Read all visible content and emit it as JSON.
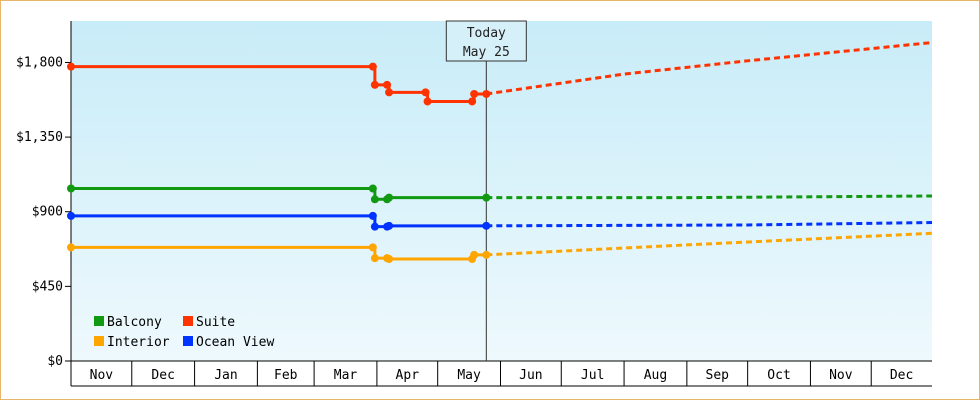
{
  "chart_data": {
    "type": "line",
    "title": "",
    "xlabel": "",
    "ylabel": "",
    "ylim": [
      0,
      2050
    ],
    "y_ticks": [
      0,
      450,
      900,
      1350,
      1800
    ],
    "y_tick_labels": [
      "$0",
      "$450",
      "$900",
      "$1,350",
      "$1,800"
    ],
    "x_start": "2024-11-01",
    "x_end": "2025-12-31",
    "month_labels": [
      "Nov",
      "Dec",
      "Jan",
      "Feb",
      "Mar",
      "Apr",
      "May",
      "Jun",
      "Jul",
      "Aug",
      "Sep",
      "Oct",
      "Nov",
      "Dec"
    ],
    "month_starts": [
      "2024-11-01",
      "2024-12-01",
      "2025-01-01",
      "2025-02-01",
      "2025-03-01",
      "2025-04-01",
      "2025-05-01",
      "2025-06-01",
      "2025-07-01",
      "2025-08-01",
      "2025-09-01",
      "2025-10-01",
      "2025-11-01",
      "2025-12-01"
    ],
    "grid": false,
    "legend_position": "bottom-left",
    "background_gradient": [
      "#c8ecf8",
      "#eef9fd"
    ],
    "today": {
      "line1": "Today",
      "line2": "May 25",
      "date": "2025-05-25"
    },
    "series": [
      {
        "name": "Balcony",
        "color": "#119911",
        "step_points": [
          [
            "2024-11-01",
            1040
          ],
          [
            "2025-03-30",
            1040
          ],
          [
            "2025-03-31",
            975
          ],
          [
            "2025-04-06",
            975
          ],
          [
            "2025-04-07",
            985
          ],
          [
            "2025-05-25",
            985
          ]
        ],
        "forecast": [
          [
            "2025-05-25",
            985
          ],
          [
            "2025-09-01",
            985
          ],
          [
            "2025-12-31",
            995
          ]
        ]
      },
      {
        "name": "Suite",
        "color": "#ff3300",
        "step_points": [
          [
            "2024-11-01",
            1775
          ],
          [
            "2025-03-30",
            1775
          ],
          [
            "2025-03-31",
            1665
          ],
          [
            "2025-04-06",
            1665
          ],
          [
            "2025-04-07",
            1620
          ],
          [
            "2025-04-25",
            1620
          ],
          [
            "2025-04-26",
            1565
          ],
          [
            "2025-05-18",
            1565
          ],
          [
            "2025-05-19",
            1610
          ],
          [
            "2025-05-25",
            1610
          ]
        ],
        "forecast": [
          [
            "2025-05-25",
            1610
          ],
          [
            "2025-08-01",
            1730
          ],
          [
            "2025-10-01",
            1810
          ],
          [
            "2025-12-31",
            1920
          ]
        ]
      },
      {
        "name": "Interior",
        "color": "#ffa500",
        "step_points": [
          [
            "2024-11-01",
            685
          ],
          [
            "2025-03-30",
            685
          ],
          [
            "2025-03-31",
            620
          ],
          [
            "2025-04-06",
            620
          ],
          [
            "2025-04-07",
            615
          ],
          [
            "2025-05-18",
            615
          ],
          [
            "2025-05-19",
            640
          ],
          [
            "2025-05-25",
            640
          ]
        ],
        "forecast": [
          [
            "2025-05-25",
            640
          ],
          [
            "2025-09-01",
            700
          ],
          [
            "2025-12-31",
            770
          ]
        ]
      },
      {
        "name": "Ocean View",
        "color": "#0033ff",
        "step_points": [
          [
            "2024-11-01",
            875
          ],
          [
            "2025-03-30",
            875
          ],
          [
            "2025-03-31",
            810
          ],
          [
            "2025-04-06",
            810
          ],
          [
            "2025-04-07",
            815
          ],
          [
            "2025-05-25",
            815
          ]
        ],
        "forecast": [
          [
            "2025-05-25",
            815
          ],
          [
            "2025-10-01",
            820
          ],
          [
            "2025-12-31",
            835
          ]
        ]
      }
    ],
    "legend": [
      {
        "name": "Balcony",
        "color": "#119911"
      },
      {
        "name": "Suite",
        "color": "#ff3300"
      },
      {
        "name": "Interior",
        "color": "#ffa500"
      },
      {
        "name": "Ocean View",
        "color": "#0033ff"
      }
    ]
  }
}
